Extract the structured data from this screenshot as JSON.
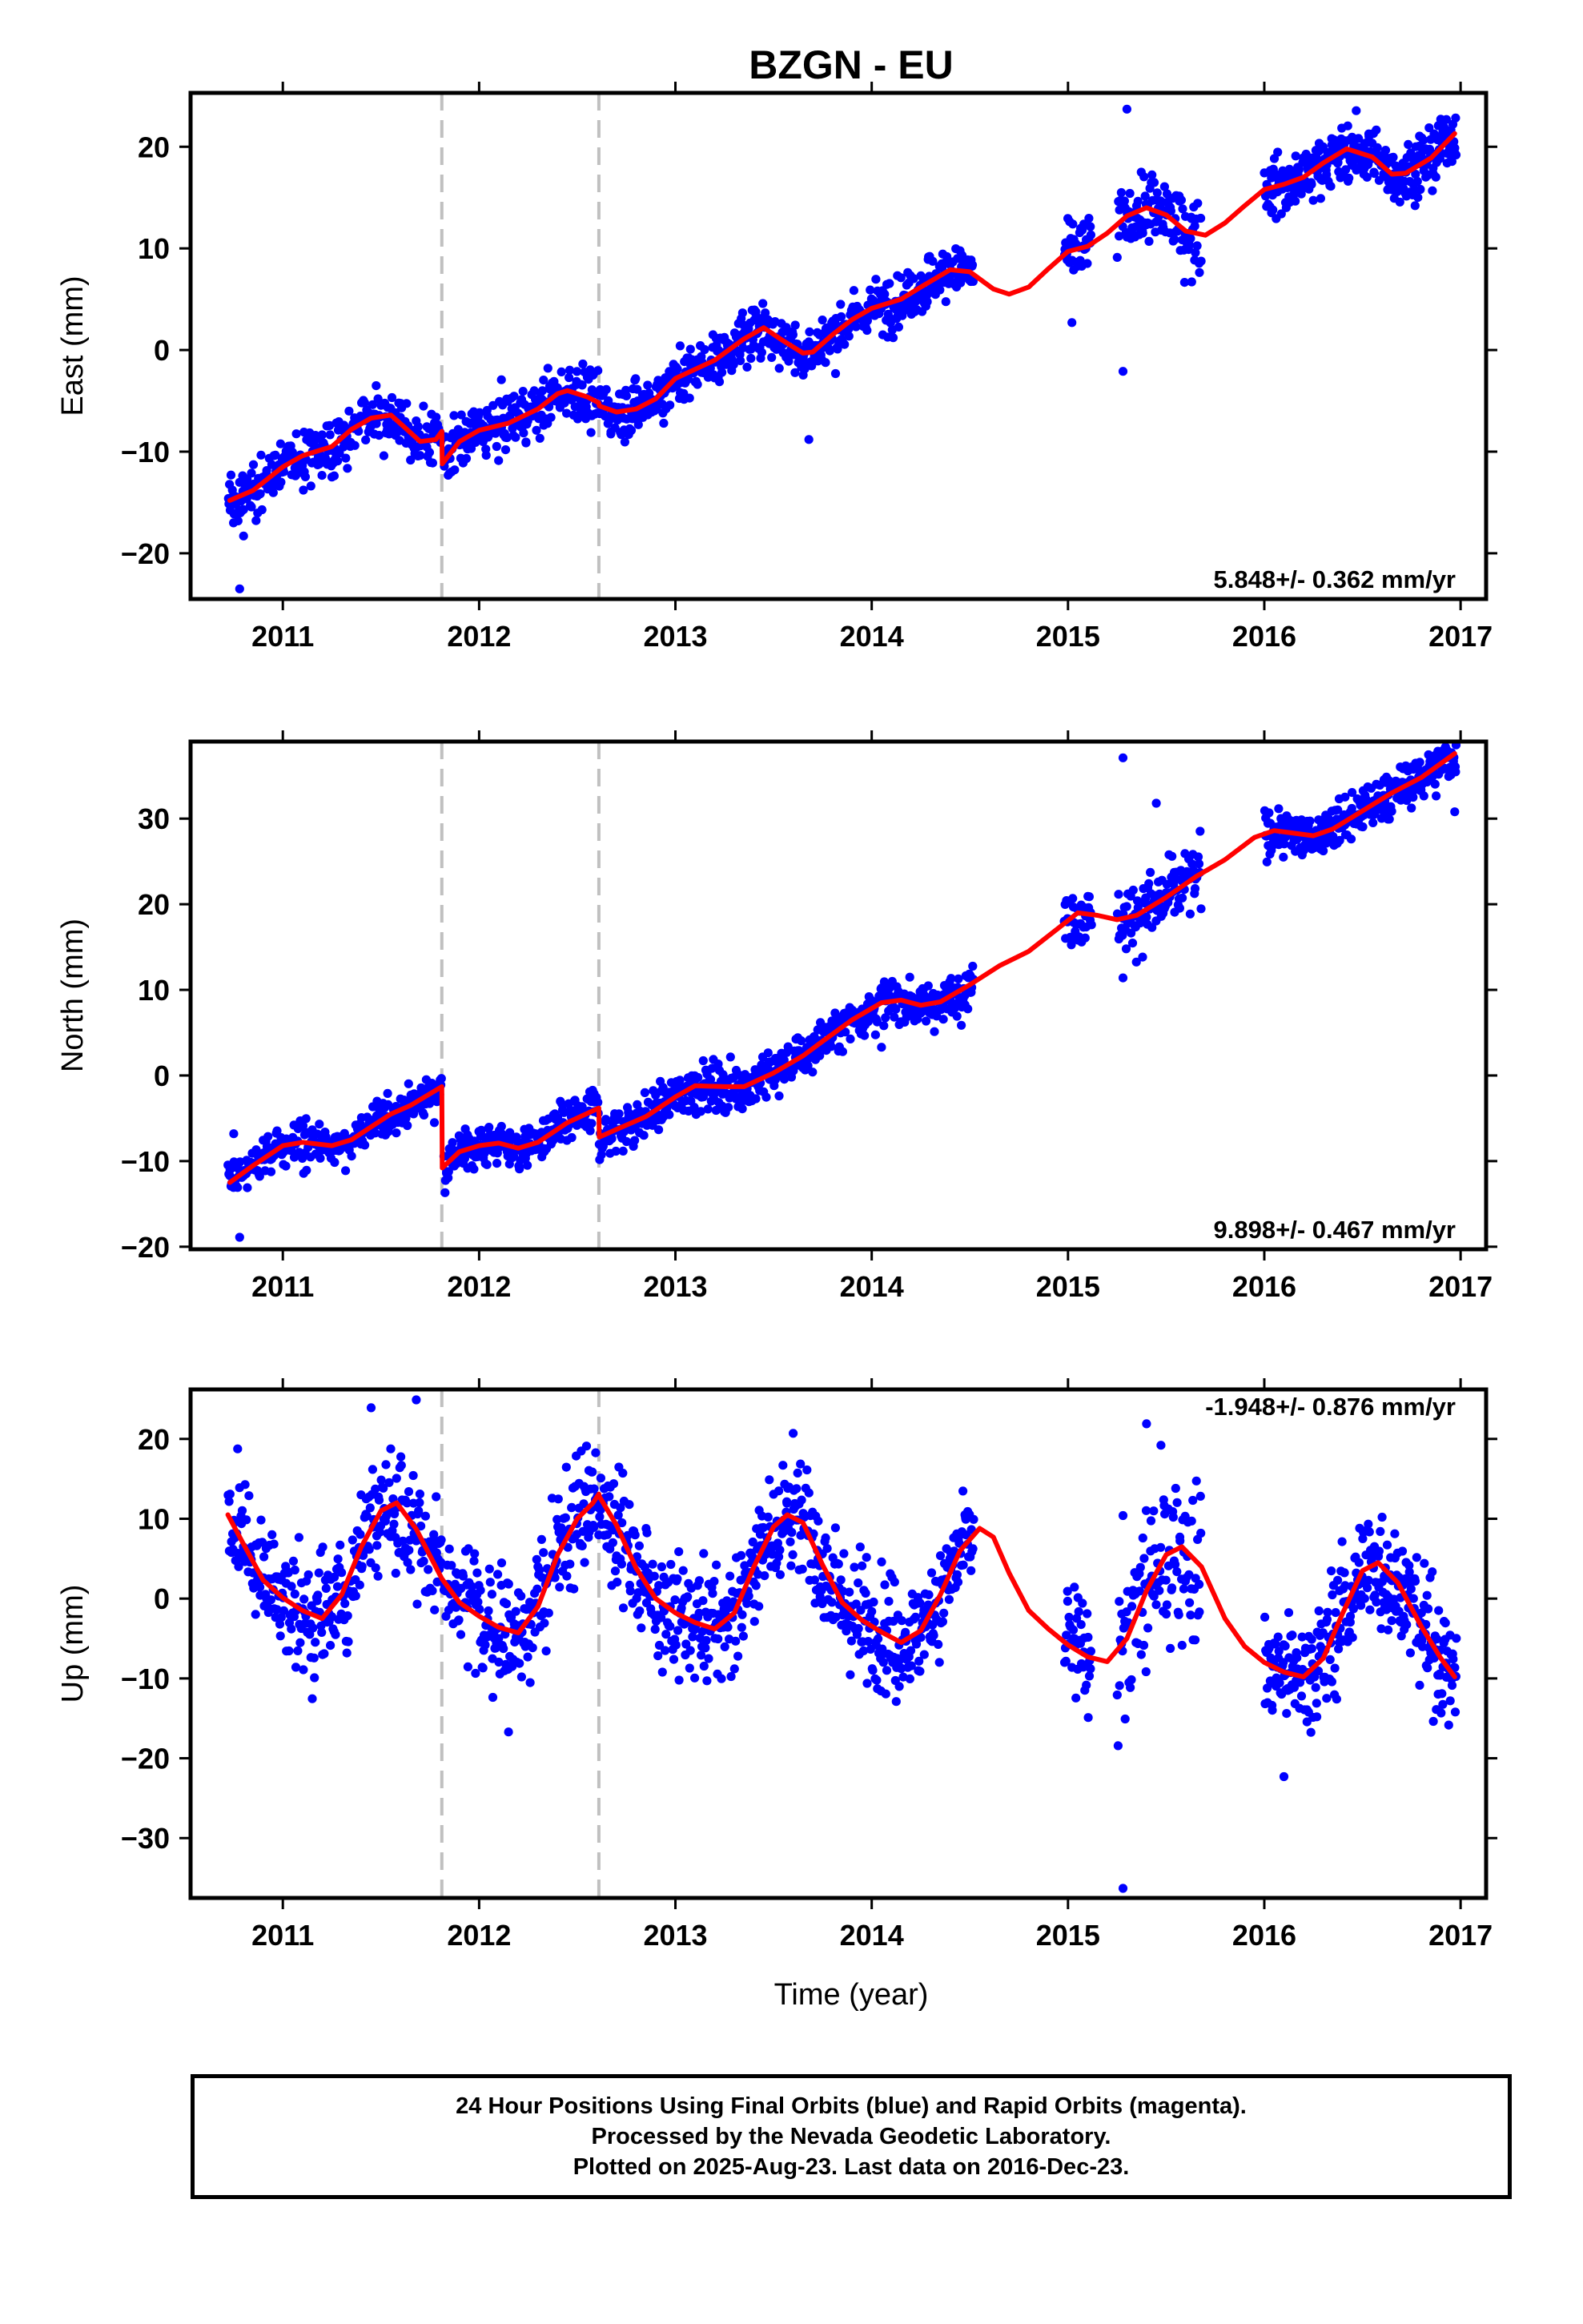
{
  "chart_data": {
    "title": "BZGN - EU",
    "xlabel": "Time (year)",
    "x_ticks": [
      "2011",
      "2012",
      "2013",
      "2014",
      "2015",
      "2016",
      "2017"
    ],
    "xlim": [
      2010.53,
      2017.13
    ],
    "x_unit": "decimal year",
    "offset_lines": [
      2011.81,
      2012.61
    ],
    "marker_color": "#0000ff",
    "model_color": "#ff0000",
    "offset_line_color": "#c0c0c0",
    "panels": [
      {
        "type": "scatter",
        "name": "east",
        "ylabel": "East (mm)",
        "ylim": [
          -24.5,
          25.3
        ],
        "yticks": [
          20,
          10,
          0,
          -10,
          -20
        ],
        "ytick_labels": [
          "20",
          "10",
          "0",
          "−10",
          "−20"
        ],
        "rate_label": "5.848+/- 0.362 mm/yr",
        "rate_position": "bottom-right",
        "model": [
          [
            2010.73,
            -14.8
          ],
          [
            2010.85,
            -13.8
          ],
          [
            2011.0,
            -11.5
          ],
          [
            2011.1,
            -10.4
          ],
          [
            2011.25,
            -9.5
          ],
          [
            2011.35,
            -7.8
          ],
          [
            2011.45,
            -6.7
          ],
          [
            2011.55,
            -6.4
          ],
          [
            2011.62,
            -7.6
          ],
          [
            2011.7,
            -9.0
          ],
          [
            2011.78,
            -8.8
          ],
          [
            2011.81,
            -8.0
          ],
          [
            2011.812,
            -11.2
          ],
          [
            2011.9,
            -9.0
          ],
          [
            2012.0,
            -7.9
          ],
          [
            2012.15,
            -7.2
          ],
          [
            2012.3,
            -5.8
          ],
          [
            2012.4,
            -4.3
          ],
          [
            2012.45,
            -4.0
          ],
          [
            2012.55,
            -4.6
          ],
          [
            2012.61,
            -5.2
          ],
          [
            2012.612,
            -5.5
          ],
          [
            2012.7,
            -6.1
          ],
          [
            2012.8,
            -5.8
          ],
          [
            2012.9,
            -4.8
          ],
          [
            2013.0,
            -2.8
          ],
          [
            2013.1,
            -1.9
          ],
          [
            2013.2,
            -1.0
          ],
          [
            2013.35,
            1.1
          ],
          [
            2013.45,
            2.2
          ],
          [
            2013.55,
            0.9
          ],
          [
            2013.65,
            -0.3
          ],
          [
            2013.7,
            -0.2
          ],
          [
            2013.8,
            1.5
          ],
          [
            2013.9,
            3.0
          ],
          [
            2014.0,
            4.1
          ],
          [
            2014.15,
            5.0
          ],
          [
            2014.25,
            6.2
          ],
          [
            2014.4,
            7.9
          ],
          [
            2014.5,
            7.7
          ],
          [
            2014.62,
            6.0
          ],
          [
            2014.7,
            5.5
          ],
          [
            2014.8,
            6.2
          ],
          [
            2014.9,
            8.0
          ],
          [
            2015.0,
            9.7
          ],
          [
            2015.1,
            10.2
          ],
          [
            2015.2,
            11.5
          ],
          [
            2015.3,
            13.2
          ],
          [
            2015.4,
            14.0
          ],
          [
            2015.5,
            13.3
          ],
          [
            2015.6,
            11.7
          ],
          [
            2015.7,
            11.3
          ],
          [
            2015.8,
            12.5
          ],
          [
            2015.9,
            14.2
          ],
          [
            2016.0,
            15.8
          ],
          [
            2016.1,
            16.3
          ],
          [
            2016.2,
            17.0
          ],
          [
            2016.3,
            18.4
          ],
          [
            2016.42,
            19.8
          ],
          [
            2016.55,
            19.0
          ],
          [
            2016.65,
            17.3
          ],
          [
            2016.72,
            17.4
          ],
          [
            2016.85,
            18.9
          ],
          [
            2016.97,
            21.3
          ]
        ],
        "segments": [
          {
            "t0": 2010.72,
            "t1": 2011.81,
            "n": 300,
            "scatter": 1.3
          },
          {
            "t0": 2011.82,
            "t1": 2014.52,
            "n": 780,
            "scatter": 1.3
          },
          {
            "t0": 2014.98,
            "t1": 2015.12,
            "n": 40,
            "scatter": 1.5
          },
          {
            "t0": 2015.25,
            "t1": 2015.68,
            "n": 110,
            "scatter": 1.7
          },
          {
            "t0": 2016.0,
            "t1": 2016.98,
            "n": 320,
            "scatter": 1.4
          }
        ],
        "outliers": [
          [
            2010.78,
            -23.5
          ],
          [
            2010.8,
            -18.3
          ],
          [
            2013.68,
            -8.8
          ],
          [
            2015.28,
            -2.1
          ],
          [
            2015.3,
            23.7
          ],
          [
            2015.02,
            2.7
          ],
          [
            2015.63,
            6.7
          ],
          [
            2011.25,
            -12.5
          ]
        ]
      },
      {
        "type": "scatter",
        "name": "north",
        "ylabel": "North (mm)",
        "ylim": [
          -20.3,
          39.0
        ],
        "yticks": [
          30,
          20,
          10,
          0,
          -10,
          -20
        ],
        "ytick_labels": [
          "30",
          "20",
          "10",
          "0",
          "−10",
          "−20"
        ],
        "rate_label": "9.898+/- 0.467 mm/yr",
        "rate_position": "bottom-right",
        "model": [
          [
            2010.73,
            -12.5
          ],
          [
            2010.85,
            -10.5
          ],
          [
            2011.0,
            -8.2
          ],
          [
            2011.1,
            -7.8
          ],
          [
            2011.25,
            -8.2
          ],
          [
            2011.35,
            -7.5
          ],
          [
            2011.45,
            -6.0
          ],
          [
            2011.55,
            -4.5
          ],
          [
            2011.65,
            -3.5
          ],
          [
            2011.81,
            -1.3
          ],
          [
            2011.812,
            -10.8
          ],
          [
            2011.9,
            -8.9
          ],
          [
            2012.0,
            -8.2
          ],
          [
            2012.1,
            -7.9
          ],
          [
            2012.2,
            -8.5
          ],
          [
            2012.3,
            -7.8
          ],
          [
            2012.45,
            -5.5
          ],
          [
            2012.61,
            -3.8
          ],
          [
            2012.612,
            -7.2
          ],
          [
            2012.7,
            -6.3
          ],
          [
            2012.85,
            -4.8
          ],
          [
            2013.0,
            -2.5
          ],
          [
            2013.1,
            -1.2
          ],
          [
            2013.25,
            -1.3
          ],
          [
            2013.35,
            -1.3
          ],
          [
            2013.5,
            0.3
          ],
          [
            2013.65,
            2.3
          ],
          [
            2013.75,
            4.0
          ],
          [
            2013.9,
            6.5
          ],
          [
            2014.05,
            8.5
          ],
          [
            2014.15,
            8.8
          ],
          [
            2014.25,
            8.2
          ],
          [
            2014.35,
            8.6
          ],
          [
            2014.5,
            10.6
          ],
          [
            2014.65,
            12.8
          ],
          [
            2014.8,
            14.5
          ],
          [
            2014.95,
            17.2
          ],
          [
            2015.05,
            19.0
          ],
          [
            2015.15,
            18.7
          ],
          [
            2015.25,
            18.2
          ],
          [
            2015.35,
            18.7
          ],
          [
            2015.5,
            20.8
          ],
          [
            2015.65,
            23.2
          ],
          [
            2015.8,
            25.2
          ],
          [
            2015.95,
            27.8
          ],
          [
            2016.05,
            28.6
          ],
          [
            2016.15,
            28.3
          ],
          [
            2016.25,
            28.0
          ],
          [
            2016.35,
            28.8
          ],
          [
            2016.5,
            30.9
          ],
          [
            2016.65,
            33.0
          ],
          [
            2016.8,
            34.8
          ],
          [
            2016.97,
            37.6
          ]
        ],
        "segments": [
          {
            "t0": 2010.72,
            "t1": 2011.81,
            "n": 300,
            "scatter": 1.2
          },
          {
            "t0": 2011.82,
            "t1": 2014.52,
            "n": 780,
            "scatter": 1.3
          },
          {
            "t0": 2014.98,
            "t1": 2015.12,
            "n": 40,
            "scatter": 1.6
          },
          {
            "t0": 2015.25,
            "t1": 2015.68,
            "n": 110,
            "scatter": 2.0
          },
          {
            "t0": 2016.0,
            "t1": 2016.98,
            "n": 320,
            "scatter": 1.3
          }
        ],
        "outliers": [
          [
            2010.78,
            -18.9
          ],
          [
            2010.75,
            -6.8
          ],
          [
            2015.28,
            37.1
          ],
          [
            2015.28,
            11.4
          ],
          [
            2015.45,
            31.8
          ],
          [
            2016.97,
            30.8
          ],
          [
            2014.05,
            3.3
          ]
        ]
      },
      {
        "type": "scatter",
        "name": "up",
        "ylabel": "Up (mm)",
        "ylim": [
          -37.5,
          26.2
        ],
        "yticks": [
          20,
          10,
          0,
          -10,
          -20,
          -30
        ],
        "ytick_labels": [
          "20",
          "10",
          "0",
          "−10",
          "−20",
          "−30"
        ],
        "rate_label": "-1.948+/- 0.876 mm/yr",
        "rate_position": "top-right",
        "model": [
          [
            2010.72,
            10.5
          ],
          [
            2010.8,
            6.8
          ],
          [
            2010.9,
            2.3
          ],
          [
            2011.0,
            0.1
          ],
          [
            2011.1,
            -1.5
          ],
          [
            2011.2,
            -2.5
          ],
          [
            2011.3,
            0.5
          ],
          [
            2011.4,
            6.5
          ],
          [
            2011.5,
            11.0
          ],
          [
            2011.58,
            12.0
          ],
          [
            2011.68,
            8.7
          ],
          [
            2011.81,
            2.5
          ],
          [
            2011.9,
            -0.5
          ],
          [
            2012.0,
            -2.2
          ],
          [
            2012.1,
            -3.6
          ],
          [
            2012.2,
            -4.3
          ],
          [
            2012.3,
            -1.0
          ],
          [
            2012.4,
            5.5
          ],
          [
            2012.5,
            10.0
          ],
          [
            2012.58,
            12.0
          ],
          [
            2012.61,
            13.1
          ],
          [
            2012.612,
            12.8
          ],
          [
            2012.7,
            9.2
          ],
          [
            2012.8,
            3.8
          ],
          [
            2012.9,
            0.0
          ],
          [
            2013.0,
            -1.8
          ],
          [
            2013.1,
            -3.0
          ],
          [
            2013.2,
            -3.8
          ],
          [
            2013.3,
            -1.8
          ],
          [
            2013.4,
            4.0
          ],
          [
            2013.5,
            9.0
          ],
          [
            2013.57,
            10.5
          ],
          [
            2013.65,
            9.5
          ],
          [
            2013.75,
            4.2
          ],
          [
            2013.85,
            -0.5
          ],
          [
            2013.95,
            -2.7
          ],
          [
            2014.05,
            -4.2
          ],
          [
            2014.15,
            -5.5
          ],
          [
            2014.25,
            -4.0
          ],
          [
            2014.35,
            0.5
          ],
          [
            2014.45,
            6.0
          ],
          [
            2014.55,
            8.8
          ],
          [
            2014.62,
            7.7
          ],
          [
            2014.7,
            3.2
          ],
          [
            2014.8,
            -1.5
          ],
          [
            2014.9,
            -3.8
          ],
          [
            2015.0,
            -5.8
          ],
          [
            2015.1,
            -7.3
          ],
          [
            2015.2,
            -7.9
          ],
          [
            2015.3,
            -5.0
          ],
          [
            2015.4,
            1.0
          ],
          [
            2015.5,
            5.5
          ],
          [
            2015.58,
            6.5
          ],
          [
            2015.68,
            4.0
          ],
          [
            2015.8,
            -2.5
          ],
          [
            2015.9,
            -6.0
          ],
          [
            2016.0,
            -8.0
          ],
          [
            2016.1,
            -9.2
          ],
          [
            2016.2,
            -9.8
          ],
          [
            2016.3,
            -7.5
          ],
          [
            2016.4,
            -1.8
          ],
          [
            2016.5,
            3.5
          ],
          [
            2016.58,
            4.5
          ],
          [
            2016.68,
            2.0
          ],
          [
            2016.8,
            -3.5
          ],
          [
            2016.9,
            -7.5
          ],
          [
            2016.97,
            -9.8
          ]
        ],
        "segments": [
          {
            "t0": 2010.72,
            "t1": 2011.81,
            "n": 300,
            "scatter": 3.6
          },
          {
            "t0": 2011.82,
            "t1": 2014.52,
            "n": 780,
            "scatter": 3.5
          },
          {
            "t0": 2014.98,
            "t1": 2015.12,
            "n": 40,
            "scatter": 4.5
          },
          {
            "t0": 2015.25,
            "t1": 2015.68,
            "n": 110,
            "scatter": 5.5
          },
          {
            "t0": 2016.0,
            "t1": 2016.98,
            "n": 320,
            "scatter": 3.6
          }
        ],
        "outliers": [
          [
            2011.68,
            24.9
          ],
          [
            2011.45,
            23.9
          ],
          [
            2015.28,
            -36.3
          ],
          [
            2015.28,
            10.4
          ],
          [
            2015.4,
            21.9
          ],
          [
            2016.1,
            -22.3
          ],
          [
            2013.6,
            20.7
          ],
          [
            2012.15,
            -16.7
          ]
        ]
      }
    ]
  },
  "footer": {
    "line1": "24 Hour Positions Using Final Orbits (blue) and Rapid Orbits (magenta).",
    "line2": "Processed by the Nevada Geodetic Laboratory.",
    "line3": "Plotted on 2025-Aug-23. Last data on 2016-Dec-23."
  }
}
